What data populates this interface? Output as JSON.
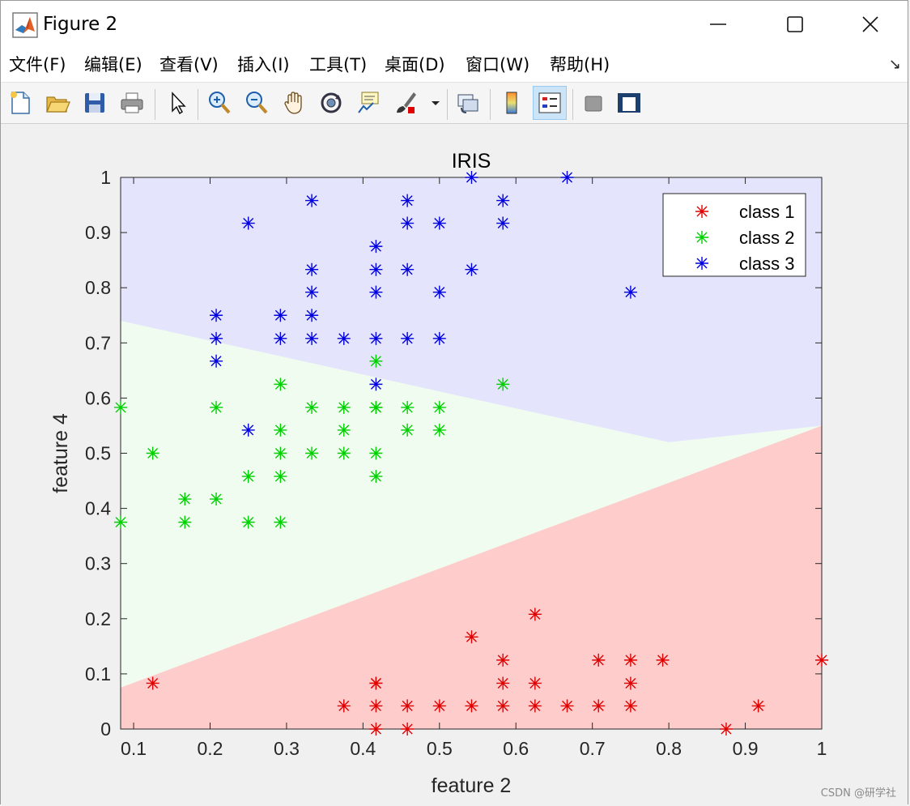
{
  "window": {
    "title": "Figure 2",
    "minimize_icon": "minimize-icon",
    "maximize_icon": "maximize-icon",
    "close_icon": "close-icon"
  },
  "menu": [
    {
      "label": "文件(F)"
    },
    {
      "label": "编辑(E)"
    },
    {
      "label": "查看(V)"
    },
    {
      "label": "插入(I)"
    },
    {
      "label": "工具(T)"
    },
    {
      "label": "桌面(D)"
    },
    {
      "label": "窗口(W)"
    },
    {
      "label": "帮助(H)"
    }
  ],
  "menu_arrow": "↘",
  "toolbar": [
    {
      "icon": "new-figure-icon"
    },
    {
      "icon": "open-icon"
    },
    {
      "icon": "save-icon"
    },
    {
      "icon": "print-icon"
    },
    {
      "icon": "pointer-icon"
    },
    {
      "icon": "zoom-in-icon"
    },
    {
      "icon": "zoom-out-icon"
    },
    {
      "icon": "pan-icon"
    },
    {
      "icon": "rotate-3d-icon"
    },
    {
      "icon": "data-cursor-icon"
    },
    {
      "icon": "brush-icon"
    },
    {
      "icon": "link-plot-icon"
    },
    {
      "icon": "colorbar-icon"
    },
    {
      "icon": "legend-icon",
      "active": true
    },
    {
      "icon": "hide-plot-tools-icon"
    },
    {
      "icon": "show-plot-tools-icon"
    }
  ],
  "watermark": "CSDN @研学社",
  "colors": {
    "class1": "#e00000",
    "class2": "#00d000",
    "class3": "#0000e0",
    "region1": "#ffcccc",
    "region2": "#f0fcf0",
    "region3": "#e4e4fc"
  },
  "chart_data": {
    "type": "scatter",
    "title": "IRIS",
    "xlabel": "feature 2",
    "ylabel": "feature 4",
    "xlim": [
      0.083,
      1.0
    ],
    "ylim": [
      0,
      1
    ],
    "xticks": [
      "0.1",
      "0.2",
      "0.3",
      "0.4",
      "0.5",
      "0.6",
      "0.7",
      "0.8",
      "0.9",
      "1"
    ],
    "yticks": [
      "0",
      "0.1",
      "0.2",
      "0.3",
      "0.4",
      "0.5",
      "0.6",
      "0.7",
      "0.8",
      "0.9",
      "1"
    ],
    "legend_position": "top-right",
    "marker": "asterisk",
    "decision_regions": {
      "class1_upper_boundary": [
        [
          0.083,
          0.075
        ],
        [
          1.0,
          0.55
        ]
      ],
      "class3_lower_boundary": [
        [
          0.083,
          0.74
        ],
        [
          0.8,
          0.52
        ],
        [
          1.0,
          0.55
        ]
      ]
    },
    "series": [
      {
        "name": "class 1",
        "x": [
          0.125,
          0.417,
          0.417,
          0.458,
          0.375,
          0.417,
          0.458,
          0.5,
          0.542,
          0.583,
          0.625,
          0.667,
          0.708,
          0.75,
          0.417,
          0.583,
          0.625,
          0.75,
          0.583,
          0.708,
          0.75,
          0.792,
          0.542,
          0.625,
          0.875,
          0.917,
          1.0
        ],
        "y": [
          0.083,
          0.0,
          0.083,
          0.0,
          0.042,
          0.042,
          0.042,
          0.042,
          0.042,
          0.042,
          0.042,
          0.042,
          0.042,
          0.042,
          0.083,
          0.083,
          0.083,
          0.083,
          0.125,
          0.125,
          0.125,
          0.125,
          0.167,
          0.208,
          0.0,
          0.042,
          0.125
        ]
      },
      {
        "name": "class 2",
        "x": [
          0.083,
          0.083,
          0.125,
          0.167,
          0.167,
          0.208,
          0.208,
          0.25,
          0.25,
          0.292,
          0.292,
          0.292,
          0.292,
          0.292,
          0.333,
          0.333,
          0.375,
          0.375,
          0.375,
          0.417,
          0.417,
          0.417,
          0.417,
          0.417,
          0.458,
          0.458,
          0.5,
          0.5,
          0.583
        ],
        "y": [
          0.583,
          0.375,
          0.5,
          0.417,
          0.375,
          0.583,
          0.417,
          0.458,
          0.375,
          0.625,
          0.542,
          0.5,
          0.458,
          0.375,
          0.583,
          0.5,
          0.583,
          0.542,
          0.5,
          0.667,
          0.583,
          0.5,
          0.458,
          0.583,
          0.583,
          0.542,
          0.583,
          0.542,
          0.625
        ]
      },
      {
        "name": "class 3",
        "x": [
          0.25,
          0.208,
          0.208,
          0.208,
          0.25,
          0.292,
          0.292,
          0.333,
          0.333,
          0.333,
          0.333,
          0.333,
          0.375,
          0.417,
          0.417,
          0.417,
          0.417,
          0.417,
          0.458,
          0.458,
          0.458,
          0.458,
          0.5,
          0.5,
          0.5,
          0.542,
          0.542,
          0.583,
          0.583,
          0.667,
          0.75
        ],
        "y": [
          0.917,
          0.75,
          0.708,
          0.667,
          0.542,
          0.75,
          0.708,
          0.958,
          0.833,
          0.792,
          0.75,
          0.708,
          0.708,
          0.875,
          0.833,
          0.792,
          0.708,
          0.625,
          0.958,
          0.917,
          0.833,
          0.708,
          0.917,
          0.792,
          0.708,
          1.0,
          0.833,
          0.958,
          0.917,
          1.0,
          0.792
        ]
      }
    ]
  }
}
